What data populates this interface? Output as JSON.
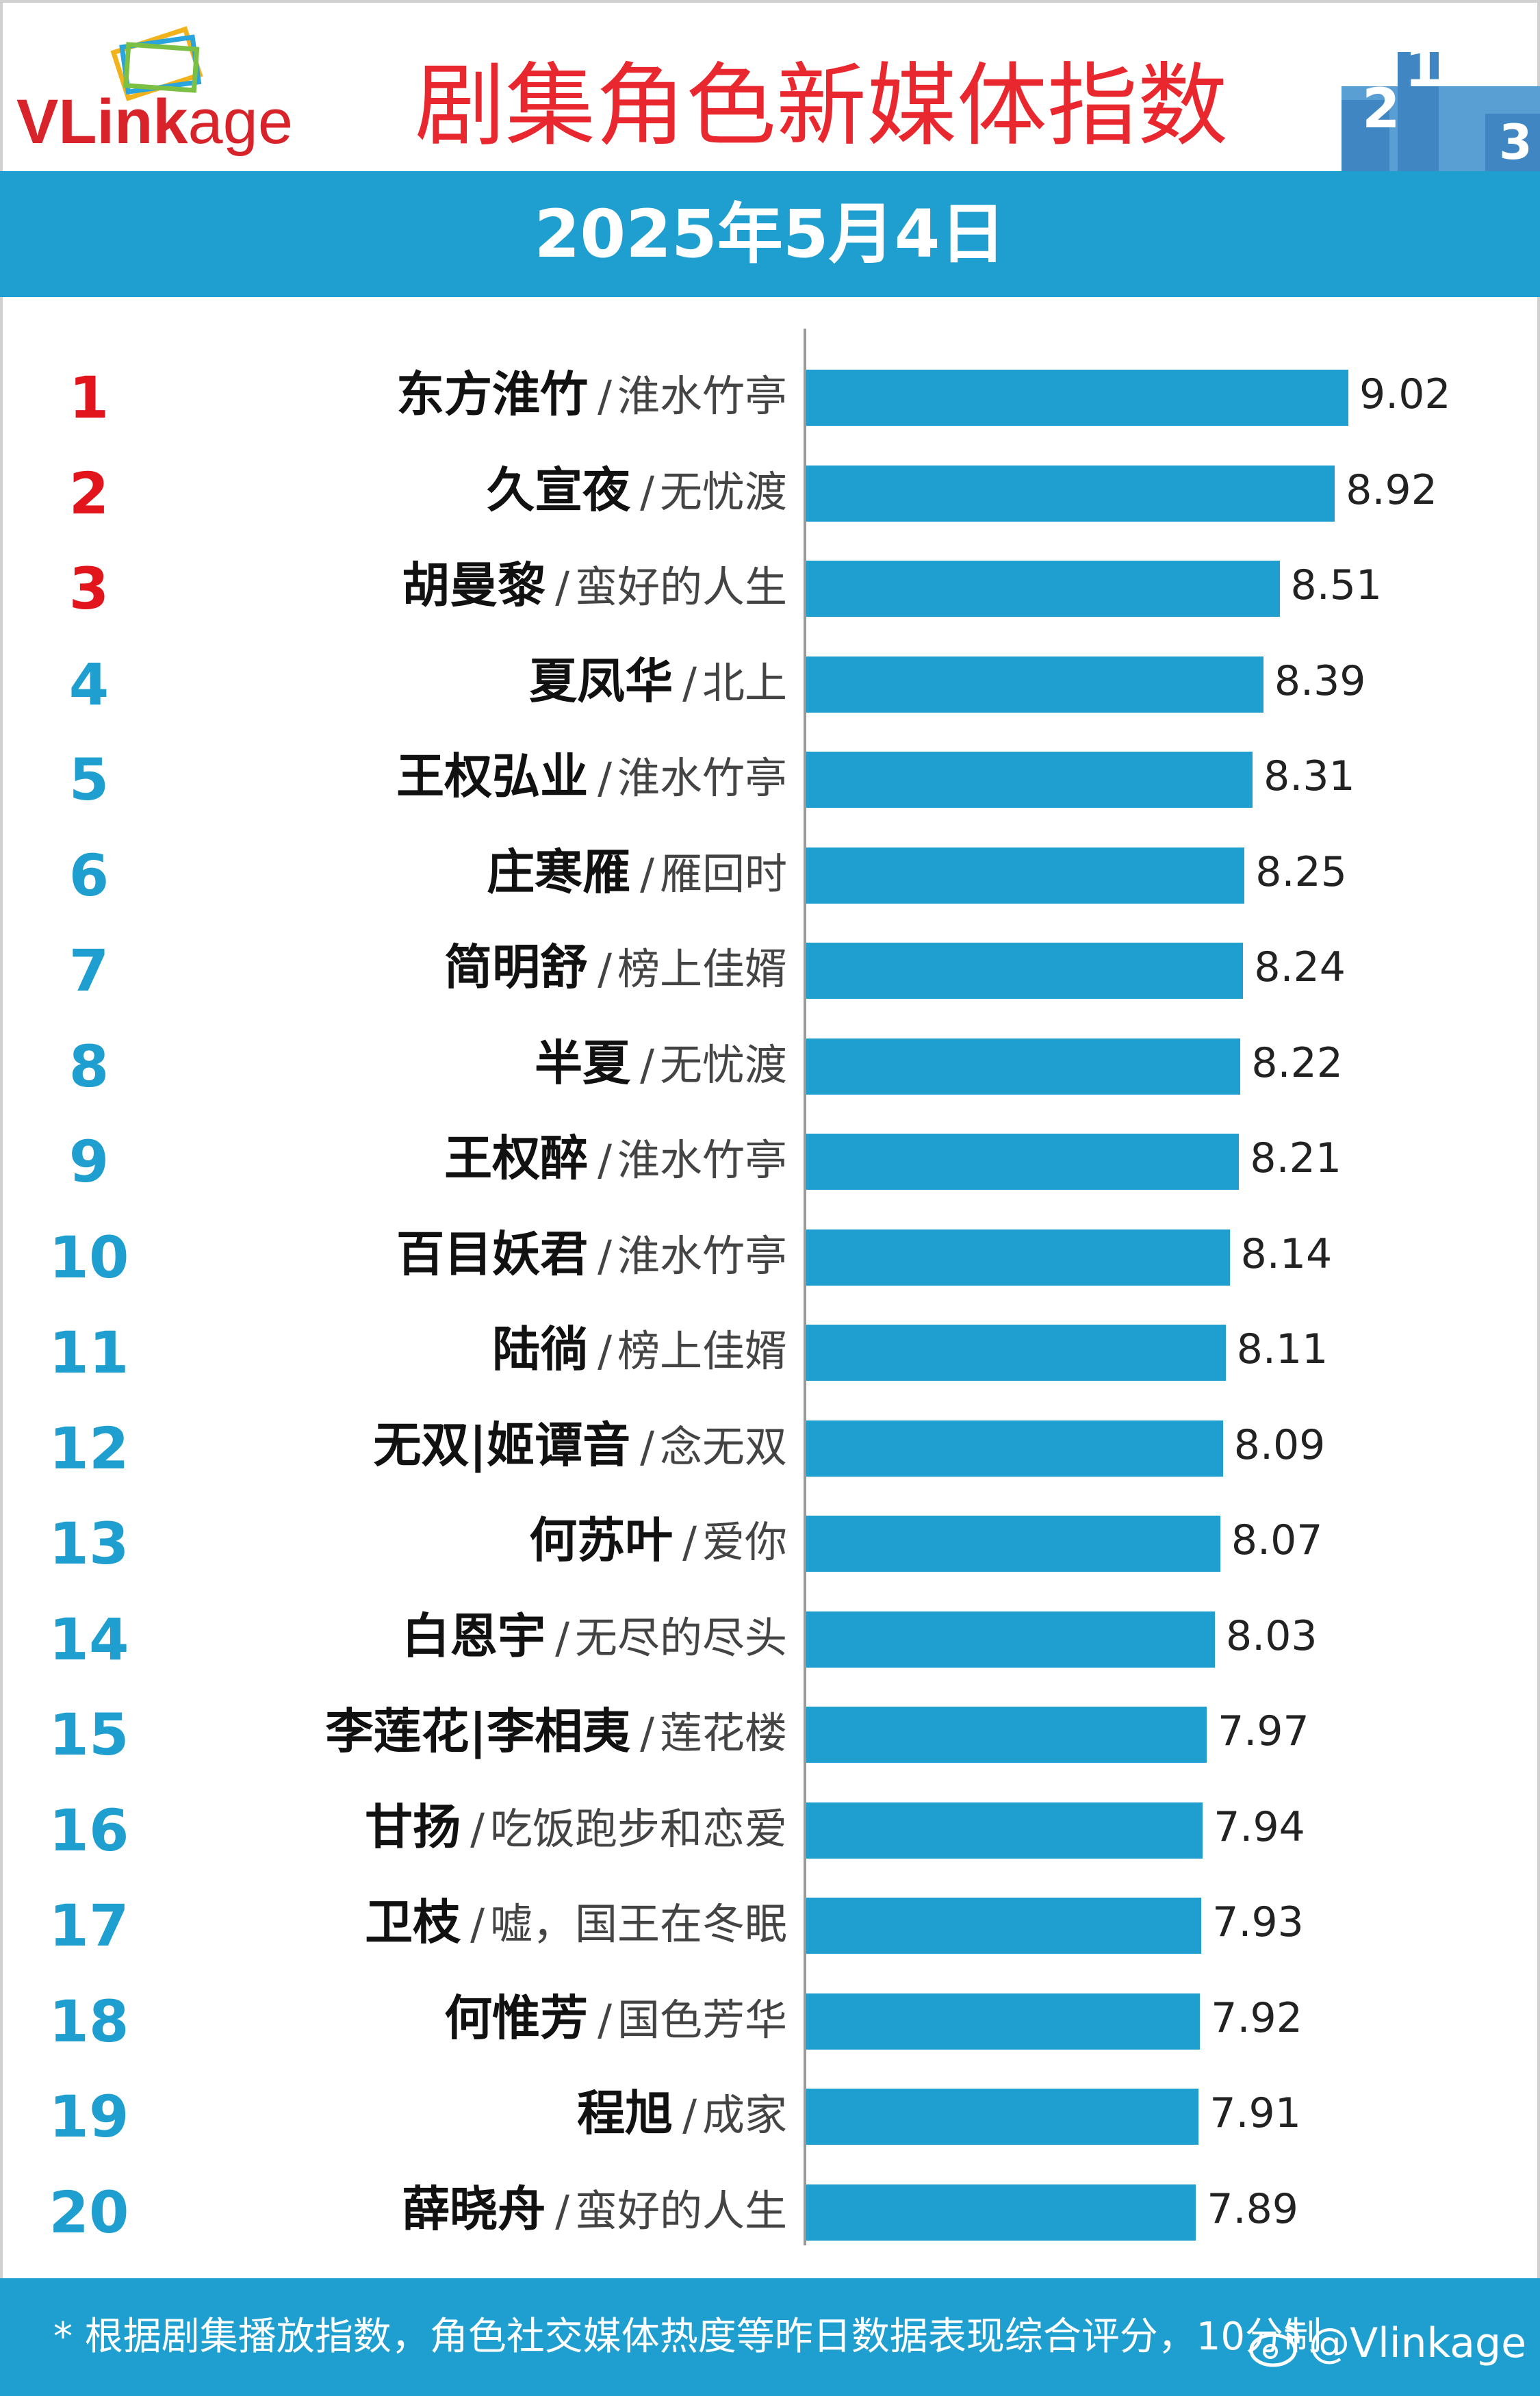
{
  "brand": {
    "logo_text_bold": "VLink",
    "logo_text_light": "age"
  },
  "header": {
    "title": "剧集角色新媒体指数",
    "date": "2025年5月4日"
  },
  "colors": {
    "accent": "#1f9fd0",
    "top3_rank": "#e3151c",
    "title": "#e8282e"
  },
  "chart_data": {
    "type": "bar",
    "orientation": "horizontal",
    "grid": false,
    "xlim": [
      5,
      10
    ],
    "categories": [
      {
        "rank": "1",
        "character": "东方淮竹",
        "drama": "淮水竹亭"
      },
      {
        "rank": "2",
        "character": "久宣夜",
        "drama": "无忧渡"
      },
      {
        "rank": "3",
        "character": "胡曼黎",
        "drama": "蛮好的人生"
      },
      {
        "rank": "4",
        "character": "夏凤华",
        "drama": "北上"
      },
      {
        "rank": "5",
        "character": "王权弘业",
        "drama": "淮水竹亭"
      },
      {
        "rank": "6",
        "character": "庄寒雁",
        "drama": "雁回时"
      },
      {
        "rank": "7",
        "character": "简明舒",
        "drama": "榜上佳婿"
      },
      {
        "rank": "8",
        "character": "半夏",
        "drama": "无忧渡"
      },
      {
        "rank": "9",
        "character": "王权醉",
        "drama": "淮水竹亭"
      },
      {
        "rank": "10",
        "character": "百目妖君",
        "drama": "淮水竹亭"
      },
      {
        "rank": "11",
        "character": "陆徜",
        "drama": "榜上佳婿"
      },
      {
        "rank": "12",
        "character": "无双|姬谭音",
        "drama": "念无双"
      },
      {
        "rank": "13",
        "character": "何苏叶",
        "drama": "爱你"
      },
      {
        "rank": "14",
        "character": "白恩宇",
        "drama": "无尽的尽头"
      },
      {
        "rank": "15",
        "character": "李莲花|李相夷",
        "drama": "莲花楼"
      },
      {
        "rank": "16",
        "character": "甘扬",
        "drama": "吃饭跑步和恋爱"
      },
      {
        "rank": "17",
        "character": "卫枝",
        "drama": "嘘，国王在冬眠"
      },
      {
        "rank": "18",
        "character": "何惟芳",
        "drama": "国色芳华"
      },
      {
        "rank": "19",
        "character": "程旭",
        "drama": "成家"
      },
      {
        "rank": "20",
        "character": "薛晓舟",
        "drama": "蛮好的人生"
      }
    ],
    "values": [
      "9.02",
      "8.92",
      "8.51",
      "8.39",
      "8.31",
      "8.25",
      "8.24",
      "8.22",
      "8.21",
      "8.14",
      "8.11",
      "8.09",
      "8.07",
      "8.03",
      "7.97",
      "7.94",
      "7.93",
      "7.92",
      "7.91",
      "7.89"
    ]
  },
  "separator": "/",
  "footer": {
    "note": "* 根据剧集播放指数，角色社交媒体热度等昨日数据表现综合评分，10分制",
    "watermark": "@Vlinkage"
  }
}
